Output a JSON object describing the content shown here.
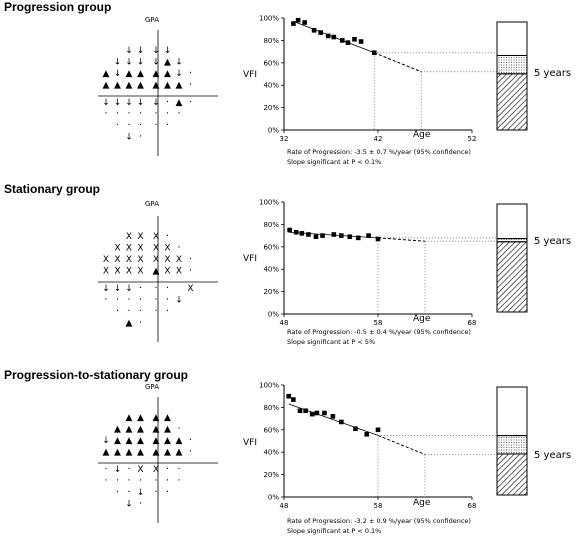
{
  "groups": [
    {
      "title": "Progression group",
      "gpa_label": "GPA",
      "y_label": "VFI",
      "age_label": "Age",
      "years_label": "5 years",
      "rate_text": "Rate of Progression: -3.5 ± 0.7 %/year (95% confidence)",
      "sig_text": "Slope significant at P < 0.1%",
      "gpa_rows": [
        "  ↓↓↓↓  ",
        " ↓↓↓↓▲↓ ",
        "▲↓▲▲▲▲↓·",
        "▲▲▲▲▲▲▲·",
        "↓↓↓↓↓·▲·",
        "·······",
        " ·····  ",
        "  ↓·    "
      ]
    },
    {
      "title": "Stationary group",
      "gpa_label": "GPA",
      "y_label": "VFI",
      "age_label": "Age",
      "years_label": "5 years",
      "rate_text": "Rate of Progression: -0.5 ± 0.4 %/year (95% confidence)",
      "sig_text": "Slope significant at P < 5%",
      "gpa_rows": [
        "  XXX·  ",
        " XXXXX· ",
        "XXXXXXX·",
        "XXXX▲XX·",
        "↓↓↓··· X",
        "······↓ ",
        " ·····  ",
        "  ▲·    "
      ]
    },
    {
      "title": "Progression-to-stationary group",
      "gpa_label": "GPA",
      "y_label": "VFI",
      "age_label": "Age",
      "years_label": "5 years",
      "rate_text": "Rate of Progression: -3.2 ± 0.9 %/year (95% confidence)",
      "sig_text": "Slope significant at P < 0.1%",
      "gpa_rows": [
        "  ▲▲▲▲  ",
        " ▲▲▲▲▲· ",
        "↓▲▲▲▲▲▲·",
        "▲▲▲▲▲▲▲·",
        "·↓·XX··",
        "·······",
        " ··↓··  ",
        "  ↓·    "
      ]
    }
  ],
  "chart_data": [
    {
      "type": "scatter",
      "title": "",
      "xlabel": "Age",
      "ylabel": "VFI",
      "x_ticks": [
        "32",
        "42",
        "52"
      ],
      "xlim": [
        32,
        52
      ],
      "y_ticks": [
        "0%",
        "20%",
        "40%",
        "60%",
        "80%",
        "100%"
      ],
      "ylim": [
        0,
        100
      ],
      "points": [
        {
          "x": 33.0,
          "y": 95
        },
        {
          "x": 33.5,
          "y": 98
        },
        {
          "x": 34.2,
          "y": 96
        },
        {
          "x": 35.2,
          "y": 89
        },
        {
          "x": 35.9,
          "y": 87
        },
        {
          "x": 36.7,
          "y": 84
        },
        {
          "x": 37.3,
          "y": 83
        },
        {
          "x": 38.2,
          "y": 80
        },
        {
          "x": 38.8,
          "y": 78
        },
        {
          "x": 39.5,
          "y": 81
        },
        {
          "x": 40.2,
          "y": 79
        },
        {
          "x": 41.6,
          "y": 69
        }
      ],
      "regression": {
        "x0": 33.0,
        "y0": 97,
        "x1": 41.6,
        "y1": 69
      },
      "projection": {
        "x0": 41.6,
        "y0": 69,
        "x1": 46.6,
        "y1": 52
      },
      "bar": {
        "top": 100,
        "current": 69,
        "projected": 52
      }
    },
    {
      "type": "scatter",
      "title": "",
      "xlabel": "Age",
      "ylabel": "VFI",
      "x_ticks": [
        "48",
        "58",
        "68"
      ],
      "xlim": [
        48,
        68
      ],
      "y_ticks": [
        "0%",
        "20%",
        "40%",
        "60%",
        "80%",
        "100%"
      ],
      "ylim": [
        0,
        100
      ],
      "points": [
        {
          "x": 48.6,
          "y": 75
        },
        {
          "x": 49.3,
          "y": 73
        },
        {
          "x": 49.9,
          "y": 72
        },
        {
          "x": 50.6,
          "y": 71
        },
        {
          "x": 51.4,
          "y": 69
        },
        {
          "x": 52.1,
          "y": 70
        },
        {
          "x": 53.3,
          "y": 71
        },
        {
          "x": 54.1,
          "y": 70
        },
        {
          "x": 55.0,
          "y": 69
        },
        {
          "x": 55.9,
          "y": 68
        },
        {
          "x": 57.0,
          "y": 70
        },
        {
          "x": 58.0,
          "y": 67
        }
      ],
      "regression": {
        "x0": 48.5,
        "y0": 73,
        "x1": 58.0,
        "y1": 68
      },
      "projection": {
        "x0": 58.0,
        "y0": 68,
        "x1": 63.0,
        "y1": 65
      },
      "bar": {
        "top": 100,
        "current": 68,
        "projected": 65
      }
    },
    {
      "type": "scatter",
      "title": "",
      "xlabel": "Age",
      "ylabel": "VFI",
      "x_ticks": [
        "48",
        "58",
        "68"
      ],
      "xlim": [
        48,
        68
      ],
      "y_ticks": [
        "0%",
        "20%",
        "40%",
        "60%",
        "80%",
        "100%"
      ],
      "ylim": [
        0,
        100
      ],
      "points": [
        {
          "x": 48.5,
          "y": 90
        },
        {
          "x": 49.0,
          "y": 87
        },
        {
          "x": 49.7,
          "y": 77
        },
        {
          "x": 50.3,
          "y": 77
        },
        {
          "x": 51.0,
          "y": 74
        },
        {
          "x": 51.5,
          "y": 75
        },
        {
          "x": 52.3,
          "y": 75
        },
        {
          "x": 53.2,
          "y": 72
        },
        {
          "x": 54.1,
          "y": 67
        },
        {
          "x": 55.6,
          "y": 61
        },
        {
          "x": 56.8,
          "y": 56
        },
        {
          "x": 58.0,
          "y": 60
        }
      ],
      "regression": {
        "x0": 48.5,
        "y0": 83,
        "x1": 58.0,
        "y1": 55
      },
      "projection": {
        "x0": 58.0,
        "y0": 55,
        "x1": 63.0,
        "y1": 38
      },
      "bar": {
        "top": 100,
        "current": 55,
        "projected": 38
      }
    }
  ],
  "colors": {
    "ink": "#000000",
    "dotted": "#555555"
  }
}
